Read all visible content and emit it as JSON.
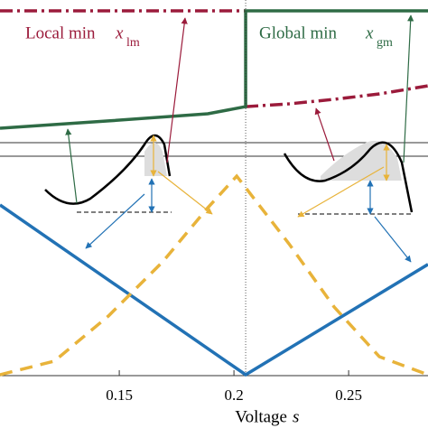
{
  "chart_data": [
    {
      "type": "line",
      "annotations": [
        {
          "text": "Local min",
          "symbol": "x",
          "subscript": "lm",
          "color": "#9b1b3b"
        },
        {
          "text": "Global min",
          "symbol": "x",
          "subscript": "gm",
          "color": "#2e6b45"
        }
      ],
      "xlim": [
        0.098,
        0.2846
      ],
      "ylim": [
        0,
        1
      ],
      "series": [
        {
          "color": "#9b1b3b",
          "dash": "dashdot",
          "x": [
            0.098,
            0.2051,
            0.2051,
            0.2051,
            0.224,
            0.2437,
            0.2634,
            0.2846
          ],
          "values": [
            0.933,
            0.933,
            null,
            0.344,
            0.361,
            0.389,
            0.422,
            0.472
          ]
        },
        {
          "color": "#2e6b45",
          "dash": "solid",
          "x": [
            0.098,
            0.1453,
            0.1886,
            0.2051,
            0.2051,
            0.2846
          ],
          "values": [
            0.211,
            0.256,
            0.3,
            0.344,
            0.933,
            0.933
          ]
        }
      ]
    },
    {
      "type": "line",
      "xlabel": "Voltage",
      "xlabel_symbol": "s",
      "xlim": [
        0.098,
        0.2846
      ],
      "ylim": [
        0,
        1
      ],
      "xticks": [
        0.15,
        0.2,
        0.25
      ],
      "vline": 0.2051,
      "series": [
        {
          "color": "#2272b5",
          "dash": "solid",
          "x": [
            0.098,
            0.2051,
            0.2846
          ],
          "values": [
            0.8,
            0,
            0.52
          ]
        },
        {
          "color": "#e8b33a",
          "dash": "dashed",
          "x": [
            0.098,
            0.1217,
            0.1453,
            0.1689,
            0.1886,
            0.2012,
            0.224,
            0.2437,
            0.2634,
            0.2846
          ],
          "values": [
            0,
            0.064,
            0.277,
            0.532,
            0.787,
            0.936,
            0.617,
            0.319,
            0.085,
            0
          ]
        }
      ]
    }
  ]
}
